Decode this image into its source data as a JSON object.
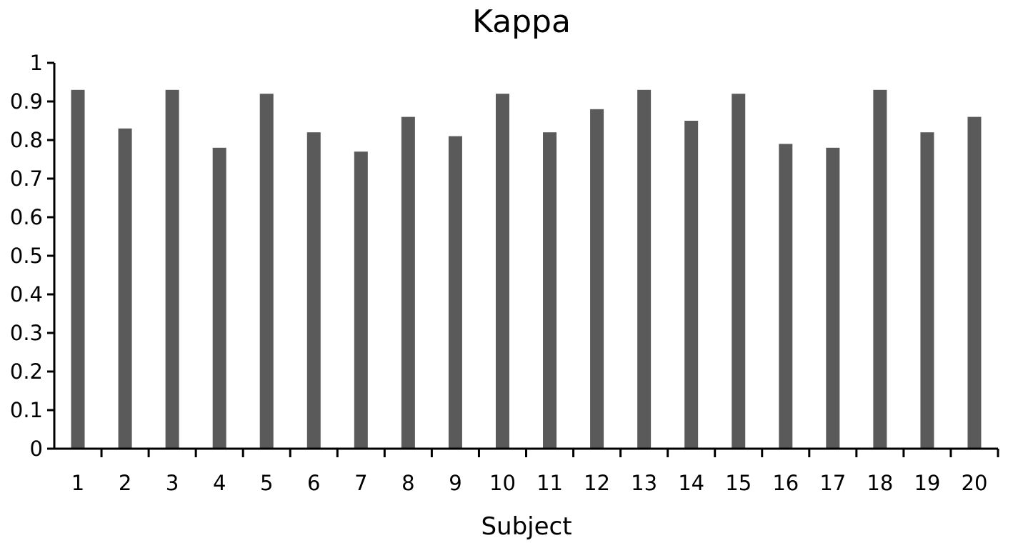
{
  "chart_data": {
    "type": "bar",
    "title": "Kappa",
    "xlabel": "Subject",
    "ylabel": "",
    "categories": [
      "1",
      "2",
      "3",
      "4",
      "5",
      "6",
      "7",
      "8",
      "9",
      "10",
      "11",
      "12",
      "13",
      "14",
      "15",
      "16",
      "17",
      "18",
      "19",
      "20"
    ],
    "values": [
      0.93,
      0.83,
      0.93,
      0.78,
      0.92,
      0.82,
      0.77,
      0.86,
      0.81,
      0.92,
      0.82,
      0.88,
      0.93,
      0.85,
      0.92,
      0.79,
      0.78,
      0.93,
      0.82,
      0.86
    ],
    "ylim": [
      0,
      1
    ],
    "yticks": [
      "0",
      "0.1",
      "0.2",
      "0.3",
      "0.4",
      "0.5",
      "0.6",
      "0.7",
      "0.8",
      "0.9",
      "1"
    ],
    "bar_color": "#5a5a5a",
    "grid": false,
    "legend": "none"
  }
}
